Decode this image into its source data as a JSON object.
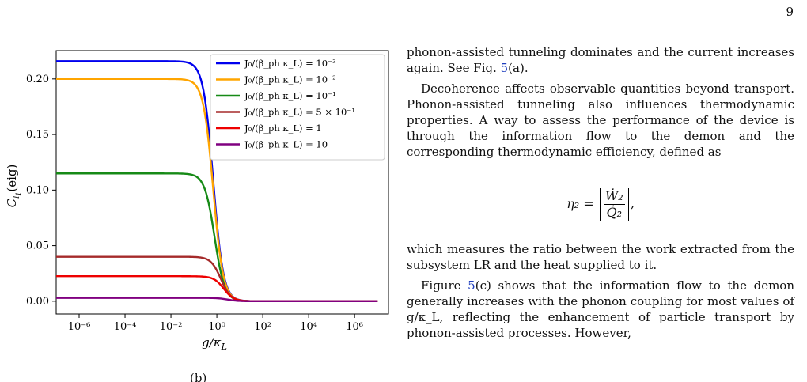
{
  "page_number": "9",
  "chart_data": {
    "type": "line",
    "xscale": "log",
    "xlabel": "g/κ_L",
    "ylabel": "C_{l1}(eig)",
    "xlim": [
      1e-07,
      30000000.0
    ],
    "ylim": [
      -0.0115,
      0.2255
    ],
    "xticks": [
      "10⁻⁶",
      "10⁻⁴",
      "10⁻²",
      "10⁰",
      "10²",
      "10⁴",
      "10⁶"
    ],
    "yticks": [
      "0.00",
      "0.05",
      "0.10",
      "0.15",
      "0.20"
    ],
    "legend_position": "upper right",
    "series": [
      {
        "name": "J₀/(β_ph κ_L) = 10⁻³",
        "color": "#0000ee",
        "plateau": 0.216,
        "x_half": 0.7
      },
      {
        "name": "J₀/(β_ph κ_L) = 10⁻²",
        "color": "#ffa500",
        "plateau": 0.2,
        "x_half": 0.7
      },
      {
        "name": "J₀/(β_ph κ_L) = 10⁻¹",
        "color": "#168a16",
        "plateau": 0.115,
        "x_half": 0.8
      },
      {
        "name": "J₀/(β_ph κ_L) = 5 × 10⁻¹",
        "color": "#a52a2a",
        "plateau": 0.04,
        "x_half": 1.5
      },
      {
        "name": "J₀/(β_ph κ_L) = 1",
        "color": "#ee0000",
        "plateau": 0.0225,
        "x_half": 2.0
      },
      {
        "name": "J₀/(β_ph κ_L) = 10",
        "color": "#800080",
        "plateau": 0.003,
        "x_half": 3.0
      }
    ]
  },
  "text": {
    "p1": "phonon-assisted tunneling dominates and the current increases again. See Fig. ",
    "p1_ref": "5",
    "p1_end": "(a).",
    "p2": "Decoherence affects observable quantities beyond transport. Phonon-assisted tunneling also influences thermodynamic properties. A way to assess the performance of the device is through the information flow to the demon and the corresponding thermodynamic efficiency, defined as",
    "eq_lhs": "η₂ =",
    "eq_num": "Ẇ₂",
    "eq_den": "Q̇₂",
    "eq_tail": ",",
    "p3": "which measures the ratio between the work extracted from the subsystem LR and the heat supplied to it.",
    "p4_a": "Figure ",
    "p4_ref": "5",
    "p4_b": "(c) shows that the information flow to the demon generally increases with the phonon coupling for most values of g/κ_L, reflecting the enhancement of particle transport by phonon-assisted processes. However,",
    "cut_left": "(b)"
  }
}
